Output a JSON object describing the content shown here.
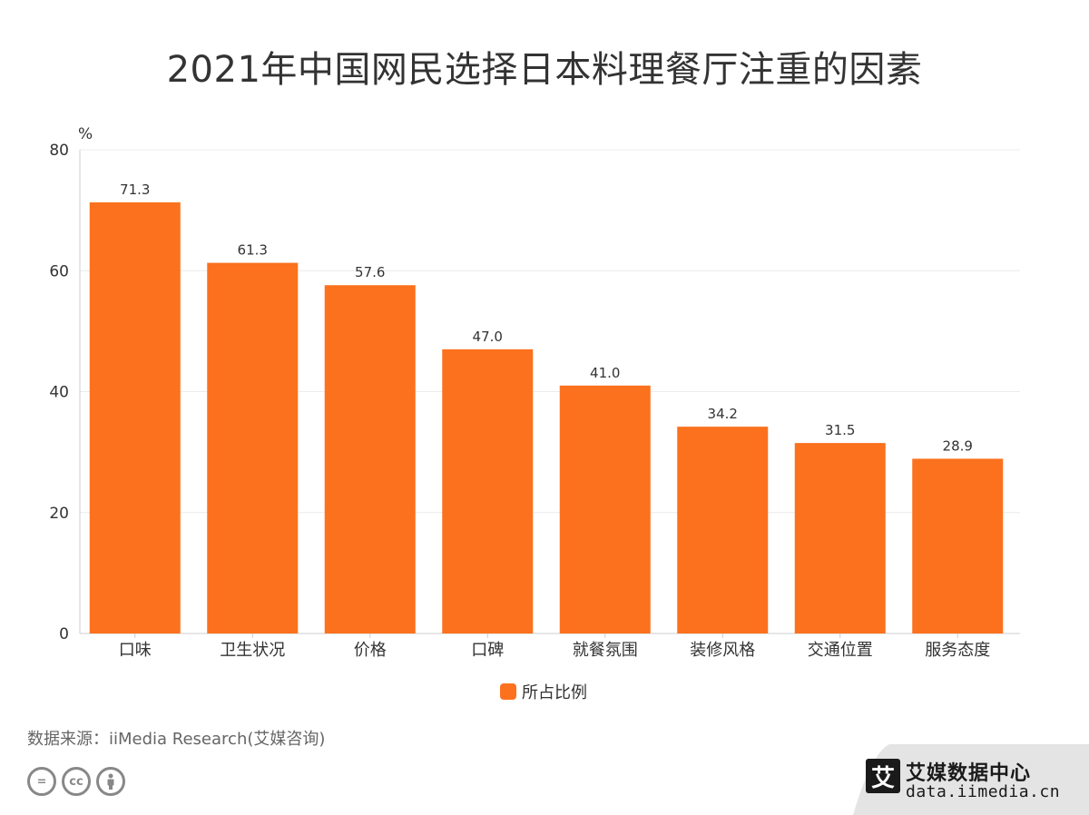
{
  "chart_data": {
    "type": "bar",
    "title": "2021年中国网民选择日本料理餐厅注重的因素",
    "ylabel": "%",
    "ylim": [
      0,
      80
    ],
    "yticks": [
      0,
      20,
      40,
      60,
      80
    ],
    "grid": true,
    "legend_position": "bottom-center",
    "categories": [
      "口味",
      "卫生状况",
      "价格",
      "口碑",
      "就餐氛围",
      "装修风格",
      "交通位置",
      "服务态度"
    ],
    "series": [
      {
        "name": "所占比例",
        "color": "#fc711d",
        "values": [
          71.3,
          61.3,
          57.6,
          47.0,
          41.0,
          34.2,
          31.5,
          28.9
        ],
        "labels": [
          "71.3",
          "61.3",
          "57.6",
          "47.0",
          "41.0",
          "34.2",
          "31.5",
          "28.9"
        ]
      }
    ]
  },
  "footer": {
    "source": "数据来源：iiMedia Research(艾媒咨询)",
    "cc_icons": [
      "equals-icon",
      "cc-icon",
      "person-icon"
    ]
  },
  "brand": {
    "mark": "艾",
    "name": "艾媒数据中心",
    "url": "data.iimedia.cn"
  }
}
